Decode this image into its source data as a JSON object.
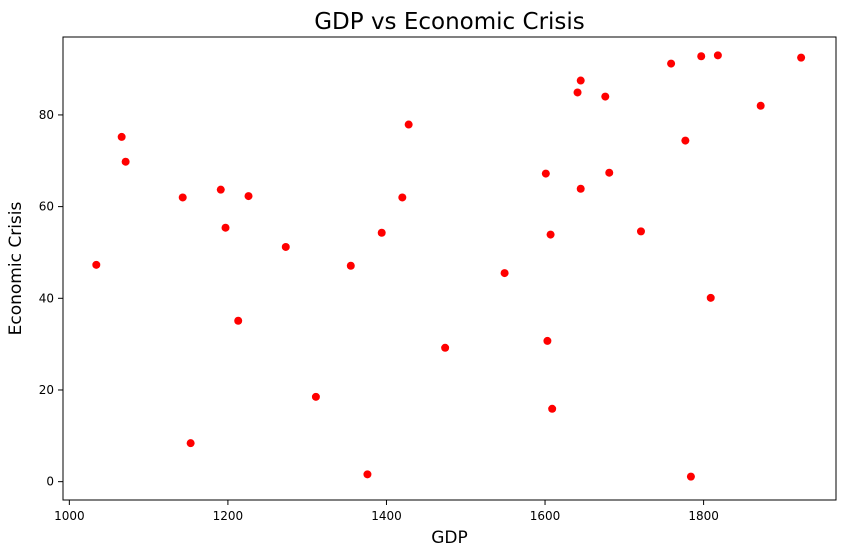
{
  "chart_data": {
    "type": "scatter",
    "title": "GDP vs Economic Crisis",
    "xlabel": "GDP",
    "ylabel": "Economic Crisis",
    "xlim": [
      992,
      1967
    ],
    "ylim": [
      -4,
      97
    ],
    "xticks": [
      1000,
      1200,
      1400,
      1600,
      1800
    ],
    "yticks": [
      0,
      20,
      40,
      60,
      80
    ],
    "grid": false,
    "point_color": "#ff0000",
    "series": [
      {
        "points": [
          {
            "x": 1034,
            "y": 47.3
          },
          {
            "x": 1066,
            "y": 75.2
          },
          {
            "x": 1071,
            "y": 69.8
          },
          {
            "x": 1143,
            "y": 62.0
          },
          {
            "x": 1153,
            "y": 8.4
          },
          {
            "x": 1191,
            "y": 63.7
          },
          {
            "x": 1197,
            "y": 55.4
          },
          {
            "x": 1213,
            "y": 35.1
          },
          {
            "x": 1226,
            "y": 62.3
          },
          {
            "x": 1273,
            "y": 51.2
          },
          {
            "x": 1311,
            "y": 18.5
          },
          {
            "x": 1355,
            "y": 47.1
          },
          {
            "x": 1376,
            "y": 1.6
          },
          {
            "x": 1394,
            "y": 54.3
          },
          {
            "x": 1420,
            "y": 62.0
          },
          {
            "x": 1428,
            "y": 77.9
          },
          {
            "x": 1474,
            "y": 29.2
          },
          {
            "x": 1549,
            "y": 45.5
          },
          {
            "x": 1601,
            "y": 67.2
          },
          {
            "x": 1603,
            "y": 30.7
          },
          {
            "x": 1607,
            "y": 53.9
          },
          {
            "x": 1609,
            "y": 15.9
          },
          {
            "x": 1641,
            "y": 84.9
          },
          {
            "x": 1645,
            "y": 87.5
          },
          {
            "x": 1645,
            "y": 63.9
          },
          {
            "x": 1676,
            "y": 84.0
          },
          {
            "x": 1681,
            "y": 67.4
          },
          {
            "x": 1721,
            "y": 54.6
          },
          {
            "x": 1759,
            "y": 91.2
          },
          {
            "x": 1777,
            "y": 74.4
          },
          {
            "x": 1784,
            "y": 1.1
          },
          {
            "x": 1797,
            "y": 92.8
          },
          {
            "x": 1809,
            "y": 40.1
          },
          {
            "x": 1818,
            "y": 93.0
          },
          {
            "x": 1872,
            "y": 82.0
          },
          {
            "x": 1923,
            "y": 92.5
          }
        ]
      }
    ]
  }
}
